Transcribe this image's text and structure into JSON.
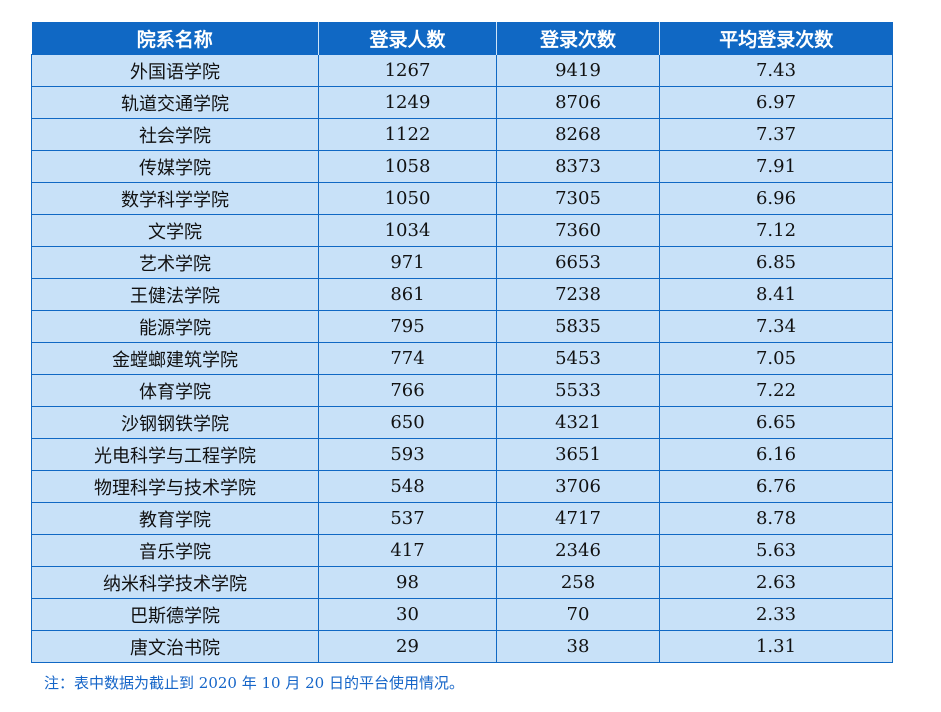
{
  "table": {
    "headers": [
      "院系名称",
      "登录人数",
      "登录次数",
      "平均登录次数"
    ],
    "rows": [
      [
        "外国语学院",
        "1267",
        "9419",
        "7.43"
      ],
      [
        "轨道交通学院",
        "1249",
        "8706",
        "6.97"
      ],
      [
        "社会学院",
        "1122",
        "8268",
        "7.37"
      ],
      [
        "传媒学院",
        "1058",
        "8373",
        "7.91"
      ],
      [
        "数学科学学院",
        "1050",
        "7305",
        "6.96"
      ],
      [
        "文学院",
        "1034",
        "7360",
        "7.12"
      ],
      [
        "艺术学院",
        "971",
        "6653",
        "6.85"
      ],
      [
        "王健法学院",
        "861",
        "7238",
        "8.41"
      ],
      [
        "能源学院",
        "795",
        "5835",
        "7.34"
      ],
      [
        "金螳螂建筑学院",
        "774",
        "5453",
        "7.05"
      ],
      [
        "体育学院",
        "766",
        "5533",
        "7.22"
      ],
      [
        "沙钢钢铁学院",
        "650",
        "4321",
        "6.65"
      ],
      [
        "光电科学与工程学院",
        "593",
        "3651",
        "6.16"
      ],
      [
        "物理科学与技术学院",
        "548",
        "3706",
        "6.76"
      ],
      [
        "教育学院",
        "537",
        "4717",
        "8.78"
      ],
      [
        "音乐学院",
        "417",
        "2346",
        "5.63"
      ],
      [
        "纳米科学技术学院",
        "98",
        "258",
        "2.63"
      ],
      [
        "巴斯德学院",
        "30",
        "70",
        "2.33"
      ],
      [
        "唐文治书院",
        "29",
        "38",
        "1.31"
      ]
    ]
  },
  "note": "注：表中数据为截止到 2020 年 10 月 20 日的平台使用情况。",
  "colors": {
    "header_bg": "#1068c4",
    "cell_bg": "#c8e1f8",
    "note_text": "#1565c8"
  }
}
